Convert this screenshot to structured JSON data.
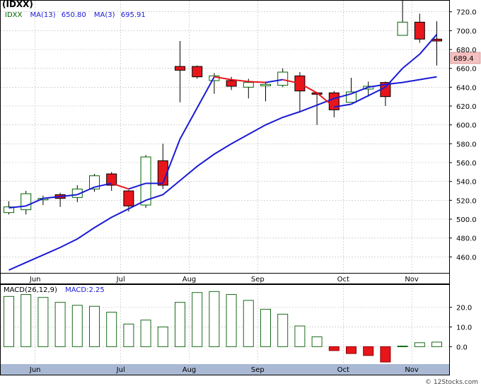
{
  "title": "(IDXX)",
  "legend": {
    "symbol": "IDXX",
    "ma13_label": "MA(13)",
    "ma13_value": "650.80",
    "ma3_label": "MA(3)",
    "ma3_value": "695.91"
  },
  "last_price": "689.4",
  "macd_legend": {
    "label": "MACD(26,12,9)",
    "value_label": "MACD:2.25"
  },
  "footer": "© 12Stocks.com",
  "colors": {
    "up_candle": "#ffffff",
    "down_candle": "#e8151b",
    "candle_outline": "#006400",
    "ma_long": "#1a1ad6",
    "ma_short_up": "#1a1ad6",
    "ma_short_down": "#e8151b",
    "macd_bar": "#1a6b1a",
    "macd_neg": "#e8151b",
    "bottom_band": "#a9b9d4",
    "last_price_box": "#f4c0c0"
  },
  "chart_data": [
    {
      "type": "candlestick",
      "title": "(IDXX)",
      "y_ticks": [
        460,
        480,
        500,
        520,
        540,
        560,
        580,
        600,
        620,
        640,
        660,
        680,
        700,
        720
      ],
      "ylim": [
        443,
        731
      ],
      "x_month_labels": [
        {
          "label": "Jun",
          "index": 1
        },
        {
          "label": "Jul",
          "index": 6
        },
        {
          "label": "Aug",
          "index": 10
        },
        {
          "label": "Sep",
          "index": 14
        },
        {
          "label": "Oct",
          "index": 19
        },
        {
          "label": "Nov",
          "index": 23
        }
      ],
      "candles": [
        {
          "o": 507,
          "h": 519,
          "l": 505,
          "c": 513
        },
        {
          "o": 510,
          "h": 530,
          "l": 505,
          "c": 527
        },
        {
          "o": 521,
          "h": 525,
          "l": 515,
          "c": 522
        },
        {
          "o": 526,
          "h": 528,
          "l": 513,
          "c": 522
        },
        {
          "o": 523,
          "h": 536,
          "l": 518,
          "c": 532
        },
        {
          "o": 532,
          "h": 548,
          "l": 529,
          "c": 546
        },
        {
          "o": 548,
          "h": 550,
          "l": 530,
          "c": 536
        },
        {
          "o": 530,
          "h": 531,
          "l": 508,
          "c": 514
        },
        {
          "o": 515,
          "h": 568,
          "l": 512,
          "c": 566
        },
        {
          "o": 562,
          "h": 580,
          "l": 532,
          "c": 536
        },
        {
          "o": 662,
          "h": 689,
          "l": 624,
          "c": 658
        },
        {
          "o": 662,
          "h": 663,
          "l": 649,
          "c": 651
        },
        {
          "o": 647,
          "h": 655,
          "l": 633,
          "c": 652
        },
        {
          "o": 647,
          "h": 651,
          "l": 637,
          "c": 641
        },
        {
          "o": 640,
          "h": 649,
          "l": 628,
          "c": 645
        },
        {
          "o": 643,
          "h": 646,
          "l": 625,
          "c": 643
        },
        {
          "o": 642,
          "h": 660,
          "l": 640,
          "c": 656
        },
        {
          "o": 652,
          "h": 656,
          "l": 613,
          "c": 636
        },
        {
          "o": 634,
          "h": 635,
          "l": 600,
          "c": 633
        },
        {
          "o": 634,
          "h": 636,
          "l": 608,
          "c": 616
        },
        {
          "o": 624,
          "h": 650,
          "l": 624,
          "c": 635
        },
        {
          "o": 638,
          "h": 646,
          "l": 630,
          "c": 641
        },
        {
          "o": 645,
          "h": 646,
          "l": 620,
          "c": 630
        },
        {
          "o": 695,
          "h": 732,
          "l": 695,
          "c": 709
        },
        {
          "o": 709,
          "h": 718,
          "l": 687,
          "c": 691
        },
        {
          "o": 691,
          "h": 710,
          "l": 663,
          "c": 689
        }
      ],
      "ma_long": {
        "name": "MA(13)",
        "values": [
          446,
          454,
          462,
          470,
          479,
          491,
          502,
          511,
          520,
          526,
          541,
          556,
          569,
          580,
          590,
          600,
          608,
          614,
          621,
          628,
          633,
          640,
          643,
          645,
          648,
          651
        ]
      },
      "ma_short": {
        "name": "MA(3)",
        "values": [
          512,
          514,
          522,
          524,
          526,
          534,
          538,
          532,
          538,
          538,
          585,
          618,
          651,
          648,
          646,
          645,
          648,
          644,
          634,
          619,
          622,
          631,
          640,
          660,
          675,
          696
        ]
      }
    },
    {
      "type": "bar",
      "title": "MACD(26,12,9)",
      "y_ticks": [
        0.0,
        10.0,
        20.0
      ],
      "y_tick_labels": [
        "0.0",
        "10.0",
        "20.0"
      ],
      "ylim": [
        -8.5,
        31
      ],
      "values": [
        25.5,
        26.5,
        25.0,
        22.5,
        21.0,
        20.5,
        17.5,
        11.5,
        13.5,
        10.0,
        22.5,
        27.5,
        28.0,
        26.5,
        23.5,
        19.0,
        16.5,
        10.5,
        5.0,
        -2.0,
        -3.5,
        -4.5,
        -7.8,
        0.3,
        2.0,
        2.3
      ]
    }
  ]
}
